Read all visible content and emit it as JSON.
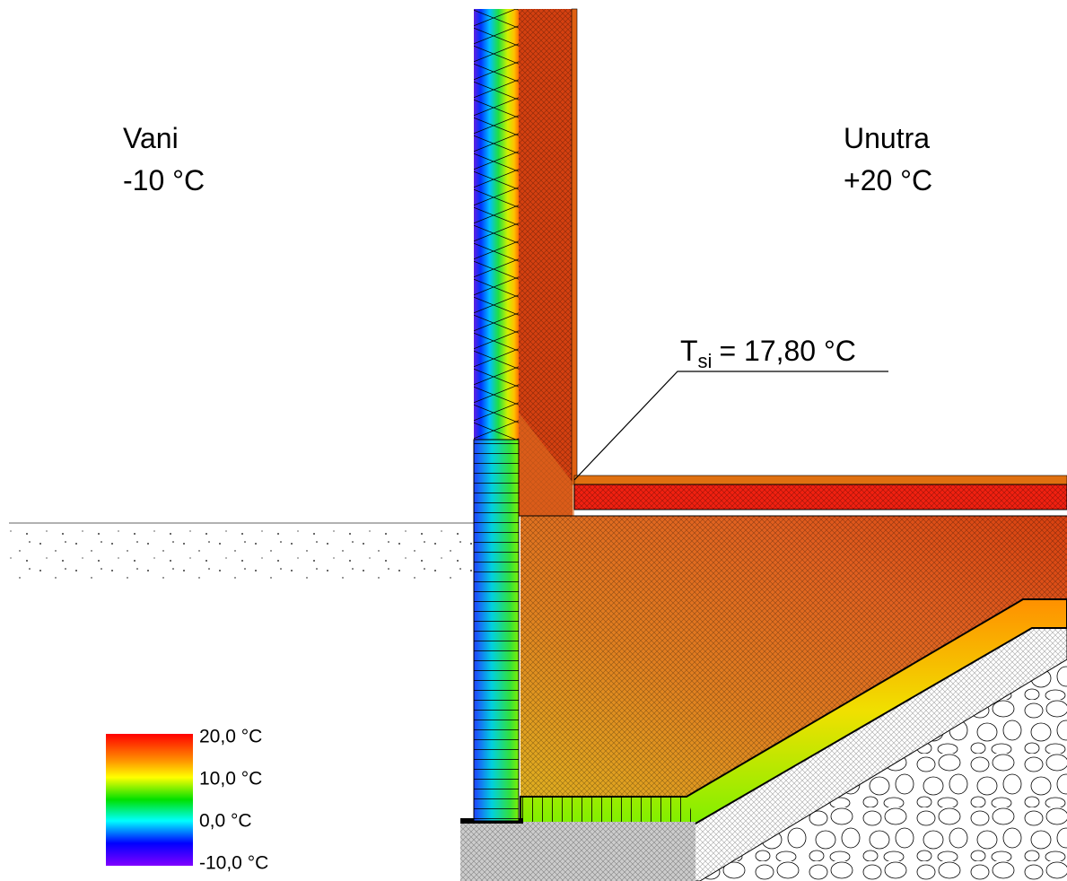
{
  "outside": {
    "label": "Vani",
    "temperature": "-10 °C"
  },
  "inside": {
    "label": "Unutra",
    "temperature": "+20 °C"
  },
  "annotation": {
    "symbol": "T",
    "subscript": "si",
    "value": "= 17,80 °C"
  },
  "legend": {
    "labels": [
      "20,0 °C",
      "10,0 °C",
      "0,0 °C",
      "-10,0 °C"
    ]
  }
}
